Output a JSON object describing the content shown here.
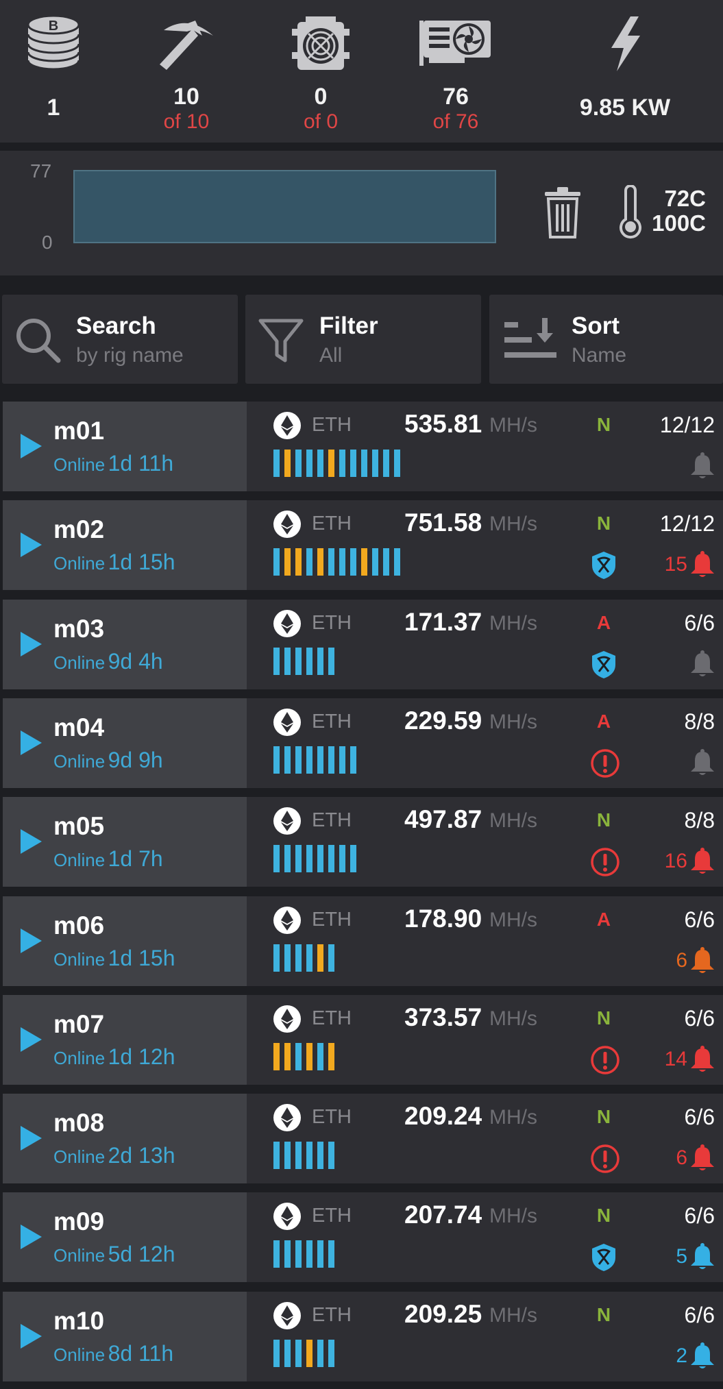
{
  "stats": [
    {
      "icon": "coin-stack-icon",
      "value": "1",
      "sub": ""
    },
    {
      "icon": "pickaxe-icon",
      "value": "10",
      "sub": "of 10"
    },
    {
      "icon": "asic-miner-icon",
      "value": "0",
      "sub": "of 0"
    },
    {
      "icon": "gpu-card-icon",
      "value": "76",
      "sub": "of 76"
    },
    {
      "icon": "lightning-icon",
      "value": "9.85 KW",
      "sub": ""
    }
  ],
  "chart": {
    "y_max": "77",
    "y_min": "0",
    "fill_fraction": 1.0
  },
  "temps": {
    "current": "72C",
    "max": "100C"
  },
  "controls": {
    "search": {
      "title": "Search",
      "sub": "by rig name"
    },
    "filter": {
      "title": "Filter",
      "sub": "All"
    },
    "sort": {
      "title": "Sort",
      "sub": "Name"
    }
  },
  "colors": {
    "accent_blue": "#35b0e4",
    "gpu_ok": "#3eb3e0",
    "gpu_warn": "#f2a91f",
    "red": "#e83a3a",
    "orange": "#e5671f",
    "green": "#8ab43c"
  },
  "rigs": [
    {
      "name": "m01",
      "status": "Online",
      "uptime": "1d 11h",
      "coin": "ETH",
      "rate": "535.81",
      "unit": "MH/s",
      "mode": "N",
      "cards": "12/12",
      "gpus": [
        "b",
        "y",
        "b",
        "b",
        "b",
        "y",
        "b",
        "b",
        "b",
        "b",
        "b",
        "b"
      ],
      "status_icon": "",
      "alarm_count": "",
      "alarm_color": "gray"
    },
    {
      "name": "m02",
      "status": "Online",
      "uptime": "1d 15h",
      "coin": "ETH",
      "rate": "751.58",
      "unit": "MH/s",
      "mode": "N",
      "cards": "12/12",
      "gpus": [
        "b",
        "y",
        "y",
        "b",
        "y",
        "b",
        "b",
        "b",
        "y",
        "b",
        "b",
        "b"
      ],
      "status_icon": "shield",
      "alarm_count": "15",
      "alarm_color": "red"
    },
    {
      "name": "m03",
      "status": "Online",
      "uptime": "9d 4h",
      "coin": "ETH",
      "rate": "171.37",
      "unit": "MH/s",
      "mode": "A",
      "cards": "6/6",
      "gpus": [
        "b",
        "b",
        "b",
        "b",
        "b",
        "b"
      ],
      "status_icon": "shield",
      "alarm_count": "",
      "alarm_color": "gray"
    },
    {
      "name": "m04",
      "status": "Online",
      "uptime": "9d 9h",
      "coin": "ETH",
      "rate": "229.59",
      "unit": "MH/s",
      "mode": "A",
      "cards": "8/8",
      "gpus": [
        "b",
        "b",
        "b",
        "b",
        "b",
        "b",
        "b",
        "b"
      ],
      "status_icon": "error",
      "alarm_count": "",
      "alarm_color": "gray"
    },
    {
      "name": "m05",
      "status": "Online",
      "uptime": "1d 7h",
      "coin": "ETH",
      "rate": "497.87",
      "unit": "MH/s",
      "mode": "N",
      "cards": "8/8",
      "gpus": [
        "b",
        "b",
        "b",
        "b",
        "b",
        "b",
        "b",
        "b"
      ],
      "status_icon": "error",
      "alarm_count": "16",
      "alarm_color": "red"
    },
    {
      "name": "m06",
      "status": "Online",
      "uptime": "1d 15h",
      "coin": "ETH",
      "rate": "178.90",
      "unit": "MH/s",
      "mode": "A",
      "cards": "6/6",
      "gpus": [
        "b",
        "b",
        "b",
        "b",
        "y",
        "b"
      ],
      "status_icon": "",
      "alarm_count": "6",
      "alarm_color": "orange"
    },
    {
      "name": "m07",
      "status": "Online",
      "uptime": "1d 12h",
      "coin": "ETH",
      "rate": "373.57",
      "unit": "MH/s",
      "mode": "N",
      "cards": "6/6",
      "gpus": [
        "y",
        "y",
        "b",
        "y",
        "b",
        "y"
      ],
      "status_icon": "error",
      "alarm_count": "14",
      "alarm_color": "red"
    },
    {
      "name": "m08",
      "status": "Online",
      "uptime": "2d 13h",
      "coin": "ETH",
      "rate": "209.24",
      "unit": "MH/s",
      "mode": "N",
      "cards": "6/6",
      "gpus": [
        "b",
        "b",
        "b",
        "b",
        "b",
        "b"
      ],
      "status_icon": "error",
      "alarm_count": "6",
      "alarm_color": "red"
    },
    {
      "name": "m09",
      "status": "Online",
      "uptime": "5d 12h",
      "coin": "ETH",
      "rate": "207.74",
      "unit": "MH/s",
      "mode": "N",
      "cards": "6/6",
      "gpus": [
        "b",
        "b",
        "b",
        "b",
        "b",
        "b"
      ],
      "status_icon": "shield",
      "alarm_count": "5",
      "alarm_color": "blue"
    },
    {
      "name": "m10",
      "status": "Online",
      "uptime": "8d 11h",
      "coin": "ETH",
      "rate": "209.25",
      "unit": "MH/s",
      "mode": "N",
      "cards": "6/6",
      "gpus": [
        "b",
        "b",
        "b",
        "y",
        "b",
        "b"
      ],
      "status_icon": "",
      "alarm_count": "2",
      "alarm_color": "blue"
    }
  ]
}
